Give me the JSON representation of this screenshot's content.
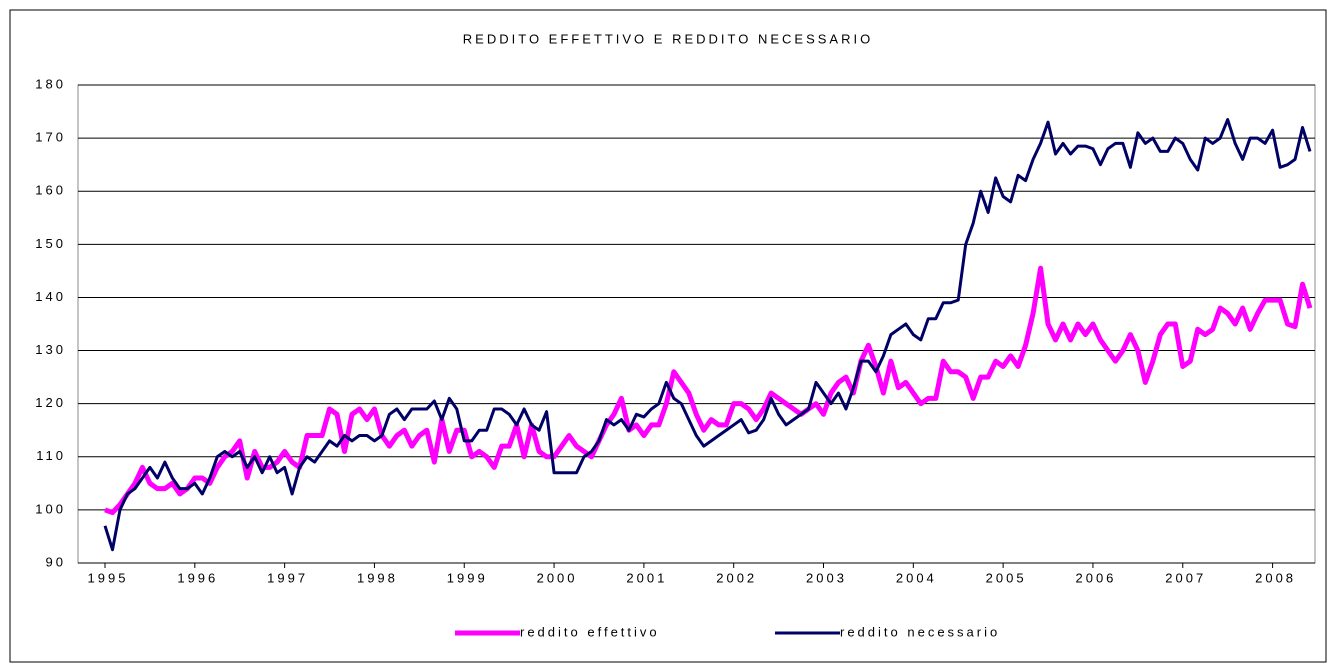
{
  "chart_data": {
    "type": "line",
    "title": "REDDITO EFFETTIVO E REDDITO NECESSARIO",
    "categories": [
      "1995",
      null,
      null,
      null,
      null,
      null,
      null,
      null,
      null,
      null,
      null,
      null,
      "1996",
      null,
      null,
      null,
      null,
      null,
      null,
      null,
      null,
      null,
      null,
      null,
      "1997",
      null,
      null,
      null,
      null,
      null,
      null,
      null,
      null,
      null,
      null,
      null,
      "1998",
      null,
      null,
      null,
      null,
      null,
      null,
      null,
      null,
      null,
      null,
      null,
      "1999",
      null,
      null,
      null,
      null,
      null,
      null,
      null,
      null,
      null,
      null,
      null,
      "2000",
      null,
      null,
      null,
      null,
      null,
      null,
      null,
      null,
      null,
      null,
      null,
      "2001",
      null,
      null,
      null,
      null,
      null,
      null,
      null,
      null,
      null,
      null,
      null,
      "2002",
      null,
      null,
      null,
      null,
      null,
      null,
      null,
      null,
      null,
      null,
      null,
      "2003",
      null,
      null,
      null,
      null,
      null,
      null,
      null,
      null,
      null,
      null,
      null,
      "2004",
      null,
      null,
      null,
      null,
      null,
      null,
      null,
      null,
      null,
      null,
      null,
      "2005",
      null,
      null,
      null,
      null,
      null,
      null,
      null,
      null,
      null,
      null,
      null,
      "2006",
      null,
      null,
      null,
      null,
      null,
      null,
      null,
      null,
      null,
      null,
      null,
      "2007",
      null,
      null,
      null,
      null,
      null,
      null,
      null,
      null,
      null,
      null,
      null,
      "2008",
      null,
      null,
      null,
      null,
      null
    ],
    "series": [
      {
        "name": "reddito effettivo",
        "color": "#ff00ff",
        "width": 5,
        "values": [
          100,
          99.5,
          101,
          103,
          105,
          108,
          105,
          104,
          104,
          105,
          103,
          104,
          106,
          106,
          105,
          108,
          110,
          111,
          113,
          106,
          111,
          108,
          108,
          109,
          111,
          109,
          108,
          114,
          114,
          114,
          119,
          118,
          111,
          118,
          119,
          117,
          119,
          114,
          112,
          114,
          115,
          112,
          114,
          115,
          109,
          117,
          111,
          115,
          115,
          110,
          111,
          110,
          108,
          112,
          112,
          116,
          110,
          116,
          111,
          110,
          110,
          112,
          114,
          112,
          111,
          110,
          113,
          116,
          118,
          121,
          115,
          116,
          114,
          116,
          116,
          120,
          126,
          124,
          122,
          118,
          115,
          117,
          116,
          116,
          120,
          120,
          119,
          117,
          119,
          122,
          121,
          120,
          119,
          118,
          119,
          120,
          118,
          122,
          124,
          125,
          122,
          128,
          131,
          127,
          122,
          128,
          123,
          124,
          122,
          120,
          121,
          121,
          128,
          126,
          126,
          125,
          121,
          125,
          125,
          128,
          127,
          129,
          127,
          131,
          137,
          145.5,
          135,
          132,
          135,
          132,
          135,
          133,
          135,
          132,
          130,
          128,
          130,
          133,
          130,
          124,
          128,
          133,
          135,
          135,
          127,
          128,
          134,
          133,
          134,
          138,
          137,
          135,
          138,
          134,
          137,
          139.5,
          139.5,
          139.5,
          135,
          134.5,
          142.5,
          138
        ]
      },
      {
        "name": "reddito necessario",
        "color": "#000066",
        "width": 3,
        "values": [
          97,
          92.5,
          100,
          103,
          104,
          106,
          108,
          106,
          109,
          106,
          104,
          104,
          105,
          103,
          106,
          110,
          111,
          110,
          111,
          108,
          110,
          107,
          110,
          107,
          108,
          103,
          108,
          110,
          109,
          111,
          113,
          112,
          114,
          113,
          114,
          114,
          113,
          114,
          118,
          119,
          117,
          119,
          119,
          119,
          120.5,
          117,
          121,
          119,
          113,
          113,
          115,
          115,
          119,
          119,
          118,
          116,
          119,
          116,
          115,
          118.5,
          107,
          107,
          107,
          107,
          110,
          111,
          113,
          117,
          116,
          117,
          115,
          118,
          117.5,
          119,
          120,
          124,
          121,
          120,
          117,
          114,
          112,
          113,
          114,
          115,
          116,
          117,
          114.5,
          115,
          117,
          121,
          118,
          116,
          117,
          118,
          119,
          124,
          122,
          120,
          122,
          119,
          123,
          128,
          128,
          126,
          129,
          133,
          134,
          135,
          133,
          132,
          136,
          136,
          139,
          139,
          139.5,
          150,
          154,
          160,
          156,
          162.5,
          159,
          158,
          163,
          162,
          166,
          169,
          173,
          167,
          169,
          167,
          168.5,
          168.5,
          168,
          165,
          168,
          169,
          169,
          164.5,
          171,
          169,
          170,
          167.5,
          167.5,
          170,
          169,
          166,
          164,
          170,
          169,
          170,
          173.5,
          169,
          166,
          170,
          170,
          169,
          171.5,
          164.5,
          165,
          166,
          172,
          167.5
        ]
      }
    ],
    "ylim": [
      90,
      180
    ],
    "yticks": [
      90,
      100,
      110,
      120,
      130,
      140,
      150,
      160,
      170,
      180
    ],
    "grid": true,
    "legend": "bottom"
  }
}
